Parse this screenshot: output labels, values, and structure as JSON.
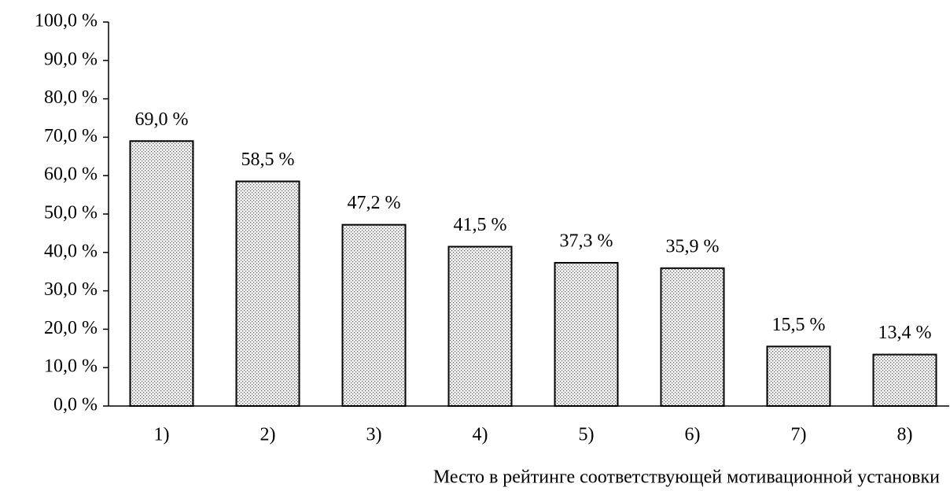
{
  "chart_data": {
    "type": "bar",
    "x_label": "Место в рейтинге соответствующей мотивационной установки",
    "categories": [
      "1)",
      "2)",
      "3)",
      "4)",
      "5)",
      "6)",
      "7)",
      "8)"
    ],
    "values": [
      69.0,
      58.5,
      47.2,
      41.5,
      37.3,
      35.9,
      15.5,
      13.4
    ],
    "value_labels": [
      "69,0 %",
      "58,5 %",
      "47,2 %",
      "41,5 %",
      "37,3 %",
      "35,9 %",
      "15,5 %",
      "13,4 %"
    ],
    "ylim": [
      0,
      100
    ],
    "yticks": [
      {
        "value": 0,
        "label": "0,0 %"
      },
      {
        "value": 10,
        "label": "10,0 %"
      },
      {
        "value": 20,
        "label": "20,0 %"
      },
      {
        "value": 30,
        "label": "30,0 %"
      },
      {
        "value": 40,
        "label": "40,0 %"
      },
      {
        "value": 50,
        "label": "50,0 %"
      },
      {
        "value": 60,
        "label": "60,0 %"
      },
      {
        "value": 70,
        "label": "70,0 %"
      },
      {
        "value": 80,
        "label": "80,0 %"
      },
      {
        "value": 90,
        "label": "90,0 %"
      },
      {
        "value": 100,
        "label": "100,0 %"
      }
    ],
    "grid": false
  }
}
